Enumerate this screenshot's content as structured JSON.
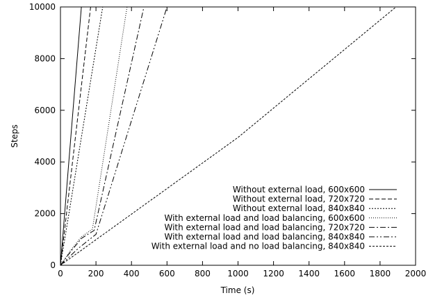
{
  "chart_data": {
    "type": "line",
    "title": "",
    "xlabel": "Time (s)",
    "ylabel": "Steps",
    "xlim": [
      0,
      2000
    ],
    "ylim": [
      0,
      10000
    ],
    "x_ticks": [
      "0",
      "200",
      "400",
      "600",
      "800",
      "1000",
      "1200",
      "1400",
      "1600",
      "1800",
      "2000"
    ],
    "y_ticks": [
      "0",
      "2000",
      "4000",
      "6000",
      "8000",
      "10000"
    ],
    "grid": false,
    "legend_position": "bottom-right",
    "series": [
      {
        "name": "Without external load, 600x600",
        "dash": "",
        "x": [
          0,
          118
        ],
        "y": [
          0,
          10000
        ]
      },
      {
        "name": "Without external load, 720x720",
        "dash": "6,3",
        "x": [
          0,
          170
        ],
        "y": [
          0,
          10000
        ]
      },
      {
        "name": "Without external load, 840x840",
        "dash": "2,2",
        "x": [
          0,
          238
        ],
        "y": [
          0,
          10000
        ]
      },
      {
        "name": "With external load and load balancing, 600x600",
        "dash": "1,2",
        "x": [
          0,
          60,
          118,
          180,
          375
        ],
        "y": [
          0,
          600,
          1100,
          1400,
          10000
        ]
      },
      {
        "name": "With external load and load balancing, 720x720",
        "dash": "8,3,2,3",
        "x": [
          0,
          60,
          120,
          190,
          470
        ],
        "y": [
          0,
          550,
          1050,
          1350,
          10000
        ]
      },
      {
        "name": "With external load and load balancing, 840x840",
        "dash": "8,3,2,3,2,3",
        "x": [
          0,
          100,
          200,
          600
        ],
        "y": [
          0,
          650,
          1200,
          10000
        ]
      },
      {
        "name": "With external load and no load balancing, 840x840",
        "dash": "3,2",
        "x": [
          0,
          1000,
          1890
        ],
        "y": [
          0,
          4950,
          10000
        ]
      }
    ]
  }
}
